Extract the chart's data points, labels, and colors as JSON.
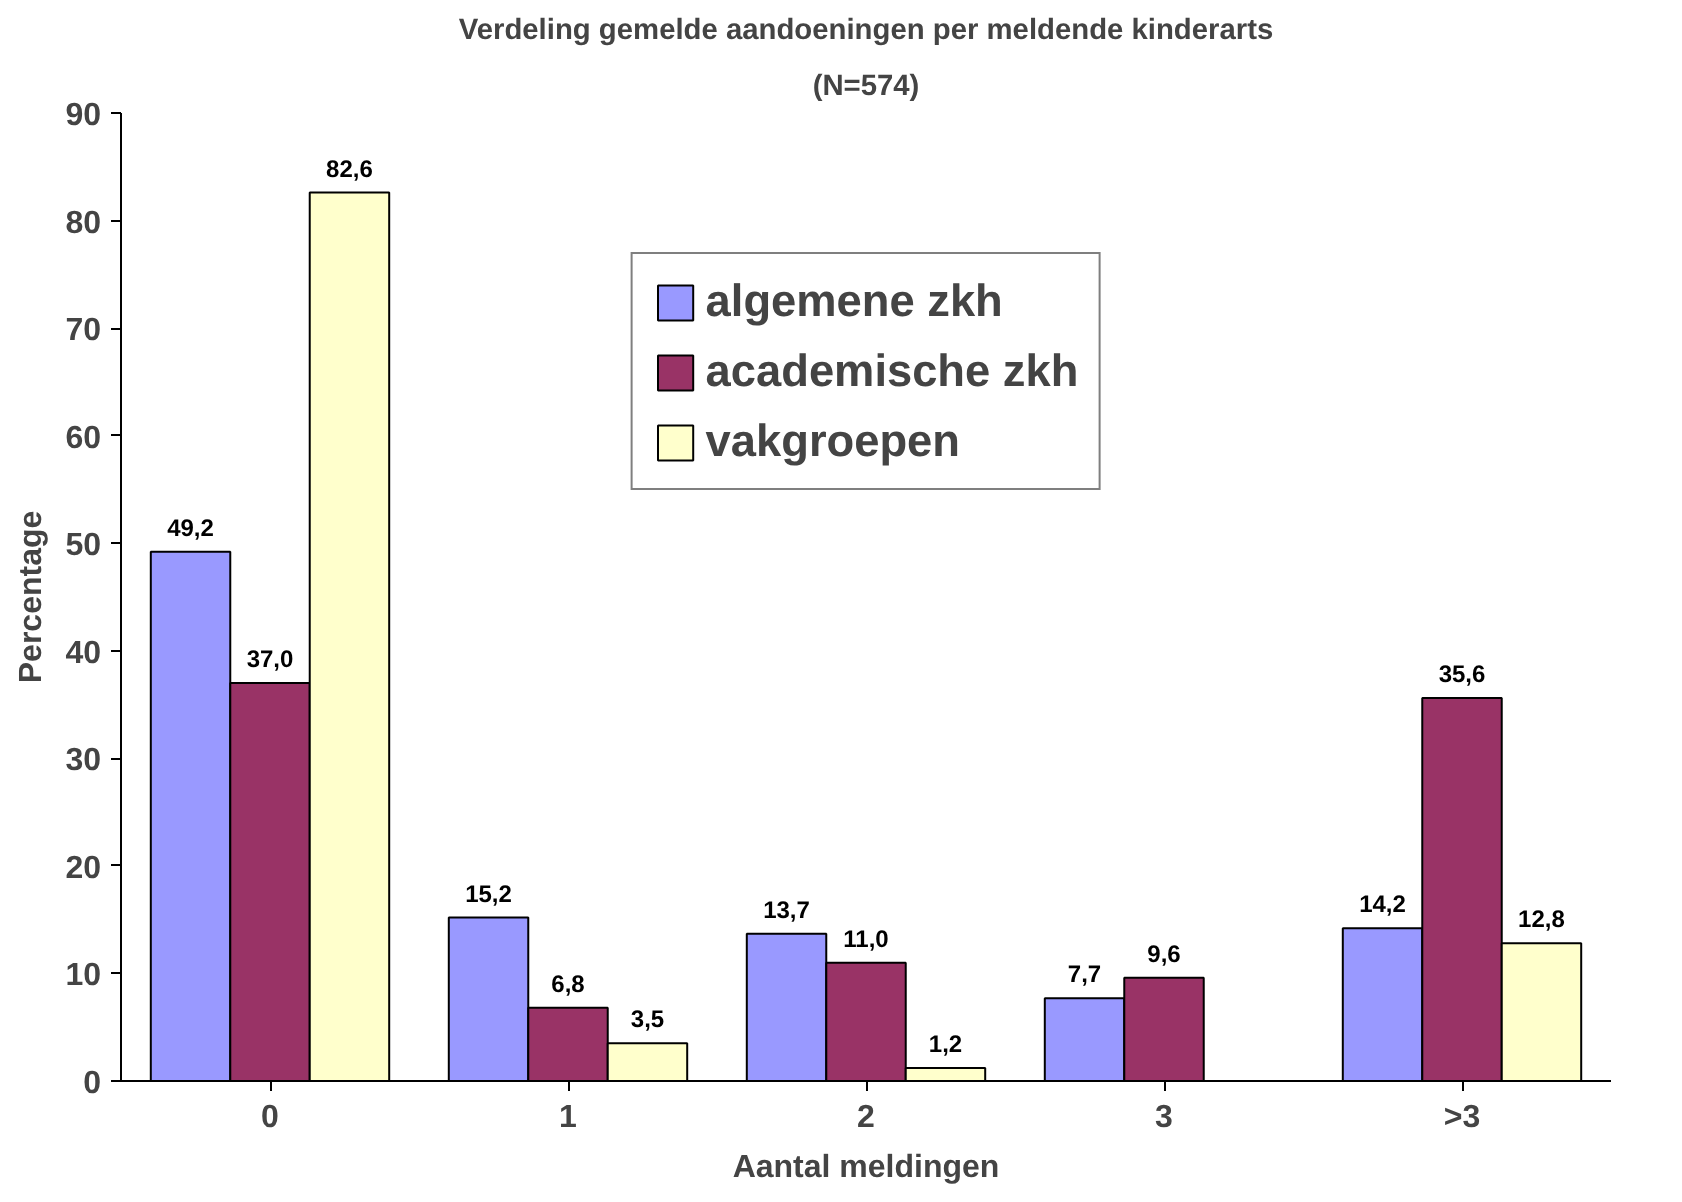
{
  "chart_data": {
    "type": "bar",
    "title": "Verdeling gemelde aandoeningen per meldende kinderarts",
    "subtitle": "(N=574)",
    "xlabel": "Aantal meldingen",
    "ylabel": "Percentage",
    "categories": [
      "0",
      "1",
      "2",
      "3",
      ">3"
    ],
    "series": [
      {
        "name": "algemene zkh",
        "color": "#9999ff",
        "values": [
          49.2,
          15.2,
          13.7,
          7.7,
          14.2
        ],
        "value_labels": [
          "49,2",
          "15,2",
          "13,7",
          "7,7",
          "14,2"
        ]
      },
      {
        "name": "academische zkh",
        "color": "#993366",
        "values": [
          37.0,
          6.8,
          11.0,
          9.6,
          35.6
        ],
        "value_labels": [
          "37,0",
          "6,8",
          "11,0",
          "9,6",
          "35,6"
        ]
      },
      {
        "name": "vakgroepen",
        "color": "#ffffcc",
        "values": [
          82.6,
          3.5,
          1.2,
          null,
          12.8
        ],
        "value_labels": [
          "82,6",
          "3,5",
          "1,2",
          null,
          "12,8"
        ]
      }
    ],
    "ylim": [
      0,
      90
    ],
    "yticks": [
      0,
      10,
      20,
      30,
      40,
      50,
      60,
      70,
      80,
      90
    ],
    "grid": false,
    "legend": "top"
  }
}
